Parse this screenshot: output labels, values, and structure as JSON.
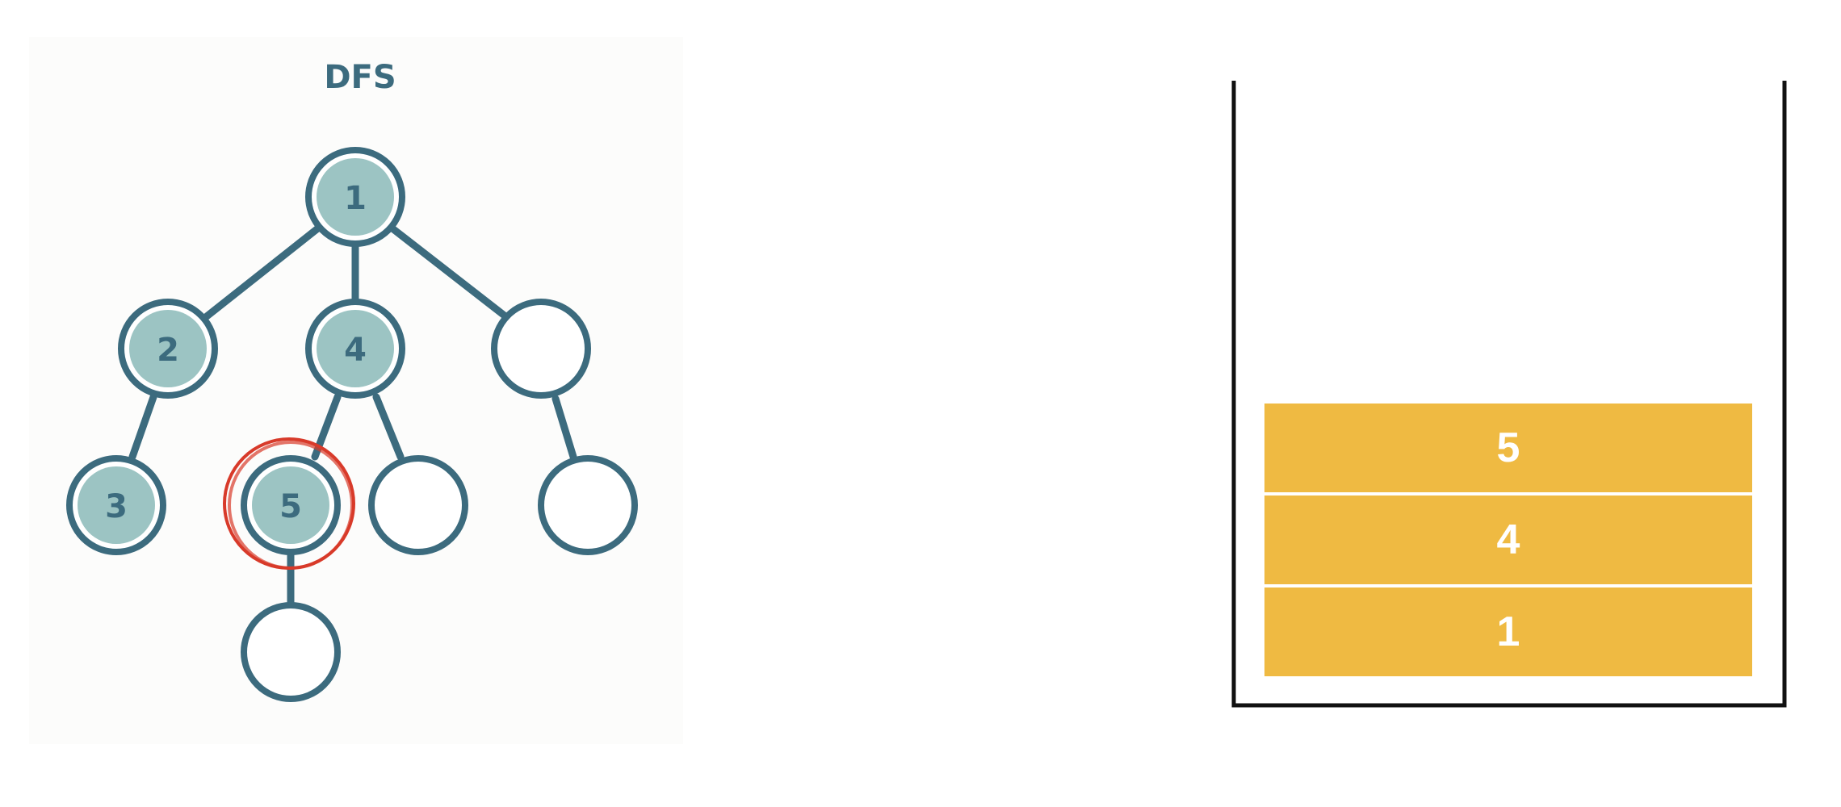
{
  "diagram": {
    "title": "DFS",
    "nodes": [
      {
        "id": "n1",
        "label": "1",
        "visited": true
      },
      {
        "id": "n2",
        "label": "2",
        "visited": true
      },
      {
        "id": "n4",
        "label": "4",
        "visited": true
      },
      {
        "id": "n-right",
        "label": "",
        "visited": false
      },
      {
        "id": "n3",
        "label": "3",
        "visited": true
      },
      {
        "id": "n5",
        "label": "5",
        "visited": true,
        "current": true
      },
      {
        "id": "n4-child",
        "label": "",
        "visited": false
      },
      {
        "id": "n-right-child",
        "label": "",
        "visited": false
      },
      {
        "id": "n5-child",
        "label": "",
        "visited": false
      }
    ],
    "edges": [
      [
        "n1",
        "n2"
      ],
      [
        "n1",
        "n4"
      ],
      [
        "n1",
        "n-right"
      ],
      [
        "n2",
        "n3"
      ],
      [
        "n4",
        "n5"
      ],
      [
        "n4",
        "n4-child"
      ],
      [
        "n-right",
        "n-right-child"
      ],
      [
        "n5",
        "n5-child"
      ]
    ]
  },
  "stack": {
    "items_top_to_bottom": [
      "5",
      "4",
      "1"
    ]
  },
  "colors": {
    "node_stroke": "#3c6b7e",
    "node_visited_fill": "#9cc4c3",
    "highlight": "#d83a2a",
    "stack_item_fill": "#efba42",
    "stack_item_text": "#ffffff"
  }
}
